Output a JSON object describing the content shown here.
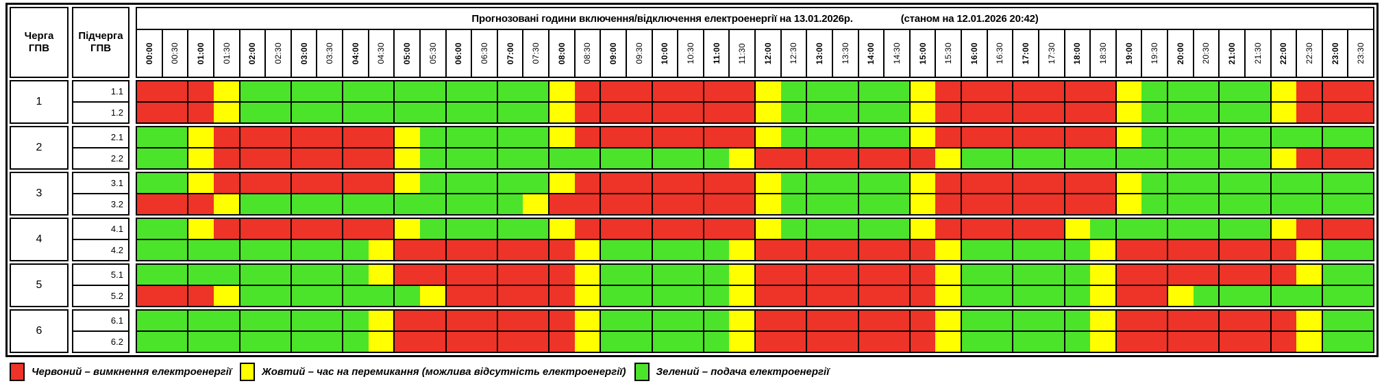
{
  "chart_data": {
    "type": "heatmap",
    "title": "Прогнозовані години включення/відключення електроенергії на 13.01.2026р.",
    "as_of": "(станом на 12.01.2026 20:42)",
    "col_header_queue": "Черга\nГПВ",
    "col_header_subqueue": "Підчерга\nГПВ",
    "x": [
      "00:00",
      "00:30",
      "01:00",
      "01:30",
      "02:00",
      "02:30",
      "03:00",
      "03:30",
      "04:00",
      "04:30",
      "05:00",
      "05:30",
      "06:00",
      "06:30",
      "07:00",
      "07:30",
      "08:00",
      "08:30",
      "09:00",
      "09:30",
      "10:00",
      "10:30",
      "11:00",
      "11:30",
      "12:00",
      "12:30",
      "13:00",
      "13:30",
      "14:00",
      "14:30",
      "15:00",
      "15:30",
      "16:00",
      "16:30",
      "17:00",
      "17:30",
      "18:00",
      "18:30",
      "19:00",
      "19:30",
      "20:00",
      "20:30",
      "21:00",
      "21:30",
      "22:00",
      "22:30",
      "23:00",
      "23:30"
    ],
    "status_colors": {
      "R": "#ee3329",
      "Y": "#ffff00",
      "G": "#4ce32b"
    },
    "status_meaning": {
      "R": "вимкнення",
      "Y": "перемикання",
      "G": "подача"
    },
    "legend": [
      {
        "key": "R",
        "color": "#ee3329",
        "label": "Червоний – вимкнення електроенергії"
      },
      {
        "key": "Y",
        "color": "#ffff00",
        "label": "Жовтий – час на перемикання (можлива відсутність електроенергії)"
      },
      {
        "key": "G",
        "color": "#4ce32b",
        "label": "Зелений – подача електроенергії"
      }
    ],
    "groups": [
      {
        "queue": "1",
        "rows": [
          {
            "label": "1.1",
            "slots": "RRRYGGGGGGGGGGGGYRRRRRRRYGGGGGYRRRRRRRYGGGGGYRRR"
          },
          {
            "label": "1.2",
            "slots": "RRRYGGGGGGGGGGGGYRRRRRRRYGGGGGYRRRRRRRYGGGGGYRRR"
          }
        ]
      },
      {
        "queue": "2",
        "rows": [
          {
            "label": "2.1",
            "slots": "GGYRRRRRRRYGGGGGYRRRRRRRYGGGGGYRRRRRRRYGGGGGGGGG"
          },
          {
            "label": "2.2",
            "slots": "GGYRRRRRRRYGGGGGGGGGGGGYRRRRRRRYGGGGGGGGGGGGYRRR"
          }
        ]
      },
      {
        "queue": "3",
        "rows": [
          {
            "label": "3.1",
            "slots": "GGYRRRRRRRYGGGGGYRRRRRRRYGGGGGYRRRRRRRYGGGGGGGGG"
          },
          {
            "label": "3.2",
            "slots": "RRRYGGGGGGGGGGGYRRRRRRRRYGGGGGYRRRRRRRYGGGGGGGGG"
          }
        ]
      },
      {
        "queue": "4",
        "rows": [
          {
            "label": "4.1",
            "slots": "GGYRRRRRRRYGGGGGYRRRRRRRYGGGGGYRRRRRYGGGGGGGYRRR"
          },
          {
            "label": "4.2",
            "slots": "GGGGGGGGGYRRRRRRRYGGGGGYRRRRRRRYGGGGGYRRRRRRRYGG"
          }
        ]
      },
      {
        "queue": "5",
        "rows": [
          {
            "label": "5.1",
            "slots": "GGGGGGGGGYRRRRRRRYGGGGGYRRRRRRRYGGGGGYRRRRRRRYGG"
          },
          {
            "label": "5.2",
            "slots": "RRRYGGGGGGGYRRRRRYGGGGGYRRRRRRRYGGGGGYRRYGGGGGGG"
          }
        ]
      },
      {
        "queue": "6",
        "rows": [
          {
            "label": "6.1",
            "slots": "GGGGGGGGGYRRRRRRRYGGGGGYRRRRRRRYGGGGGYRRRRRRRYGG"
          },
          {
            "label": "6.2",
            "slots": "GGGGGGGGGYRRRRRRRYGGGGGYRRRRRRRYGGGGGYRRRRRRRYGG"
          }
        ]
      }
    ]
  }
}
